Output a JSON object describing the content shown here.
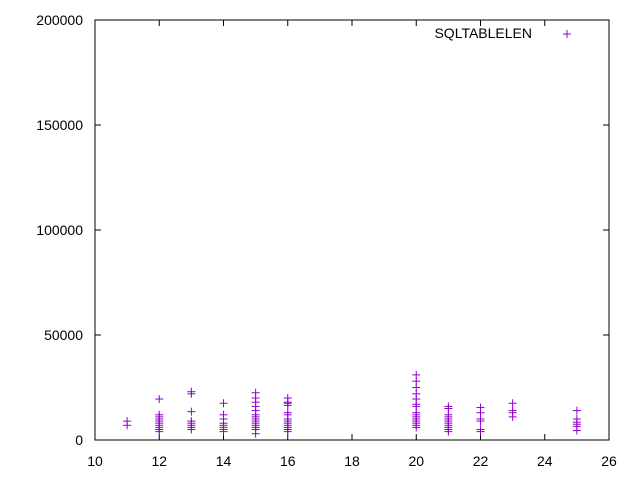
{
  "chart_data": {
    "type": "scatter",
    "title": "",
    "xlabel": "",
    "ylabel": "",
    "xlim": [
      10,
      26
    ],
    "ylim": [
      0,
      200000
    ],
    "x_ticks": [
      10,
      12,
      14,
      16,
      18,
      20,
      22,
      24,
      26
    ],
    "y_ticks": [
      0,
      50000,
      100000,
      150000,
      200000
    ],
    "x_tick_labels": [
      "10",
      "12",
      "14",
      "16",
      "18",
      "20",
      "22",
      "24",
      "26"
    ],
    "y_tick_labels": [
      "0",
      "50000",
      "100000",
      "150000",
      "200000"
    ],
    "grid": false,
    "legend": {
      "position": "top-right"
    },
    "series": [
      {
        "name": "SQLTABLELEN",
        "color": "#9400d3",
        "marker": "plus",
        "points": [
          [
            11,
            7000
          ],
          [
            11,
            9000
          ],
          [
            12,
            4000
          ],
          [
            12,
            5000
          ],
          [
            12,
            6000
          ],
          [
            12,
            7000
          ],
          [
            12,
            8000
          ],
          [
            12,
            9000
          ],
          [
            12,
            10000
          ],
          [
            12,
            11000
          ],
          [
            12,
            12000
          ],
          [
            12,
            19500
          ],
          [
            13,
            5000
          ],
          [
            13,
            6000
          ],
          [
            13,
            7000
          ],
          [
            13,
            8000
          ],
          [
            13,
            9000
          ],
          [
            13,
            13500
          ],
          [
            13,
            22000
          ],
          [
            13,
            23000
          ],
          [
            14,
            4000
          ],
          [
            14,
            5000
          ],
          [
            14,
            6000
          ],
          [
            14,
            7000
          ],
          [
            14,
            8000
          ],
          [
            14,
            10000
          ],
          [
            14,
            12000
          ],
          [
            14,
            17500
          ],
          [
            15,
            3000
          ],
          [
            15,
            5000
          ],
          [
            15,
            6000
          ],
          [
            15,
            7000
          ],
          [
            15,
            8000
          ],
          [
            15,
            9000
          ],
          [
            15,
            10000
          ],
          [
            15,
            11000
          ],
          [
            15,
            12000
          ],
          [
            15,
            14000
          ],
          [
            15,
            16000
          ],
          [
            15,
            18000
          ],
          [
            15,
            20000
          ],
          [
            15,
            22500
          ],
          [
            16,
            4000
          ],
          [
            16,
            5000
          ],
          [
            16,
            6000
          ],
          [
            16,
            7000
          ],
          [
            16,
            8000
          ],
          [
            16,
            9000
          ],
          [
            16,
            10000
          ],
          [
            16,
            12000
          ],
          [
            16,
            13000
          ],
          [
            16,
            16500
          ],
          [
            16,
            17500
          ],
          [
            16,
            18000
          ],
          [
            16,
            20000
          ],
          [
            20,
            6000
          ],
          [
            20,
            7000
          ],
          [
            20,
            8000
          ],
          [
            20,
            9000
          ],
          [
            20,
            10000
          ],
          [
            20,
            11000
          ],
          [
            20,
            12000
          ],
          [
            20,
            13000
          ],
          [
            20,
            16000
          ],
          [
            20,
            17000
          ],
          [
            20,
            19500
          ],
          [
            20,
            22000
          ],
          [
            20,
            25000
          ],
          [
            20,
            28000
          ],
          [
            20,
            31000
          ],
          [
            21,
            4000
          ],
          [
            21,
            5000
          ],
          [
            21,
            6000
          ],
          [
            21,
            7000
          ],
          [
            21,
            8000
          ],
          [
            21,
            9000
          ],
          [
            21,
            10000
          ],
          [
            21,
            11000
          ],
          [
            21,
            12000
          ],
          [
            21,
            15000
          ],
          [
            21,
            16000
          ],
          [
            22,
            4000
          ],
          [
            22,
            5000
          ],
          [
            22,
            9000
          ],
          [
            22,
            10000
          ],
          [
            22,
            13000
          ],
          [
            22,
            15500
          ],
          [
            23,
            11000
          ],
          [
            23,
            13000
          ],
          [
            23,
            14000
          ],
          [
            23,
            17500
          ],
          [
            25,
            4500
          ],
          [
            25,
            6500
          ],
          [
            25,
            7500
          ],
          [
            25,
            8500
          ],
          [
            25,
            10000
          ],
          [
            25,
            14000
          ]
        ]
      }
    ]
  }
}
